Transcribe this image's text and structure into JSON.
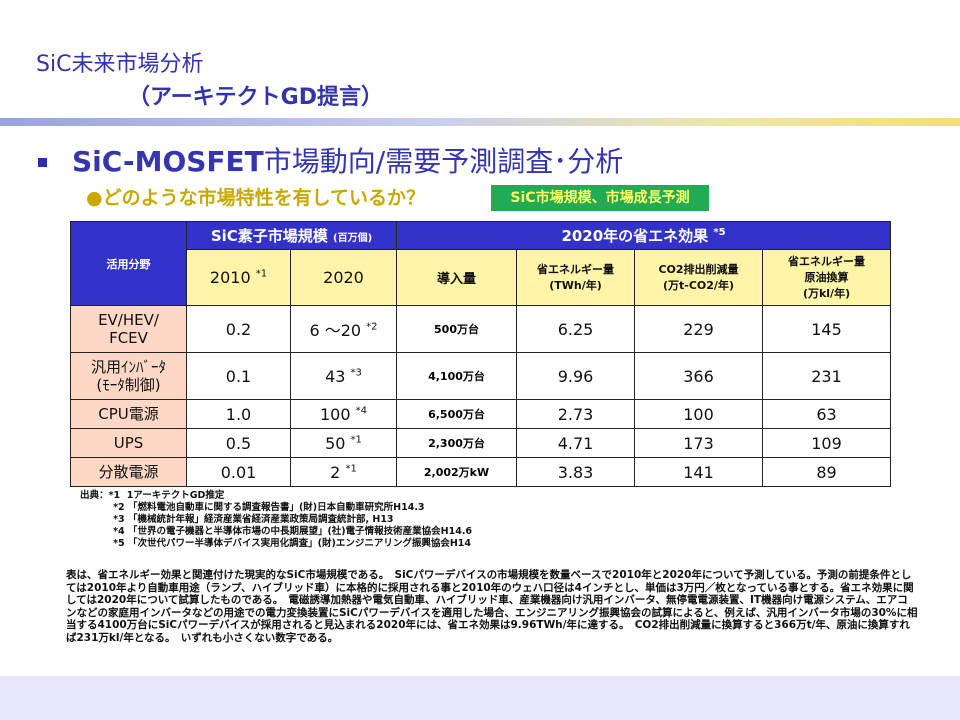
{
  "title": {
    "line1": "SiC未来市場分析",
    "line2": "（アーキテクトGD提言）"
  },
  "heading": {
    "strong": "SiC-MOSFET",
    "rest": "市場動向/需要予測調査･分析"
  },
  "sub": "●どのような市場特性を有しているか？",
  "tag": "SiC市場規模、市場成長予測",
  "table": {
    "col_field": "活用分野",
    "group1": "SiC素子市場規模",
    "group1_unit": "(百万個)",
    "group2": "2020年の省エネ効果",
    "group2_note": "*5",
    "y2010": "2010",
    "y2010_note": "*1",
    "y2020": "2020",
    "intro": "導入量",
    "energy": "省エネルギー量",
    "energy_unit": "(TWh/年)",
    "co2": "CO2排出削減量",
    "co2_unit": "(万t-CO2/年)",
    "oil": "省エネルギー量",
    "oil2": "原油換算",
    "oil_unit": "(万kl/年)",
    "rows": [
      {
        "l1": "EV/HEV/",
        "l2": "FCEV",
        "v2010": "0.2",
        "v2020": "6 ～20",
        "note": "*2",
        "intro": "500万台",
        "twh": "6.25",
        "co2": "229",
        "oil": "145"
      },
      {
        "l1": "汎用ｲﾝﾊﾞｰﾀ",
        "l2": "(ﾓｰﾀ制御)",
        "v2010": "0.1",
        "v2020": "43",
        "note": "*3",
        "intro": "4,100万台",
        "twh": "9.96",
        "co2": "366",
        "oil": "231"
      },
      {
        "l1": "CPU電源",
        "l2": "",
        "v2010": "1.0",
        "v2020": "100",
        "note": "*4",
        "intro": "6,500万台",
        "twh": "2.73",
        "co2": "100",
        "oil": "63"
      },
      {
        "l1": "UPS",
        "l2": "",
        "v2010": "0.5",
        "v2020": "50",
        "note": "*1",
        "intro": "2,300万台",
        "twh": "4.71",
        "co2": "173",
        "oil": "109"
      },
      {
        "l1": "分散電源",
        "l2": "",
        "v2010": "0.01",
        "v2020": "2",
        "note": "*1",
        "intro": "2,002万kW",
        "twh": "3.83",
        "co2": "141",
        "oil": "89"
      }
    ]
  },
  "notes": [
    "出典：*1  1アーキテクトGD推定",
    "          *2 「燃料電池自動車に関する調査報告書」(財)日本自動車研究所H14.3",
    "          *3 「機械統計年報」経済産業省経済産業政策局調査統計部, H13",
    "          *4 「世界の電子機器と半導体市場の中長期展望」(社)電子情報技術産業協会H14.6",
    "          *5 「次世代パワー半導体デバイス実用化調査」(財)エンジニアリング振興協会H14"
  ],
  "body": "表は、省エネルギー効果と関連付けた現実的なSiC市場規模である。　SiCパワーデバイスの市場規模を数量ベースで2010年と2020年について予測している。予測の前提条件としては2010年より自動車用途（ランプ、ハイブリッド車）に本格的に採用される事と2010年のウェハ口径は4インチとし、単価は3万円／枚となっている事とする。省エネ効果に関しては2020年について試算したものである。　電磁誘導加熱器や電気自動車、ハイブリッド車、産業機器向け汎用インバータ、無停電電源装置、IT機器向け電源システム、エアコンなどの家庭用インバータなどの用途での電力変換装置にSiCパワーデバイスを適用した場合、エンジニアリング振興協会の試算によると、例えば、汎用インバータ市場の30%に相当する4100万台にSiCパワーデバイスが採用されると見込まれる2020年には、省エネ効果は9.96TWh/年に達する。　CO2排出削減量に換算すると366万t/年、原油に換算すれば231万kl/年となる。　いずれも小さくない数字である。"
}
